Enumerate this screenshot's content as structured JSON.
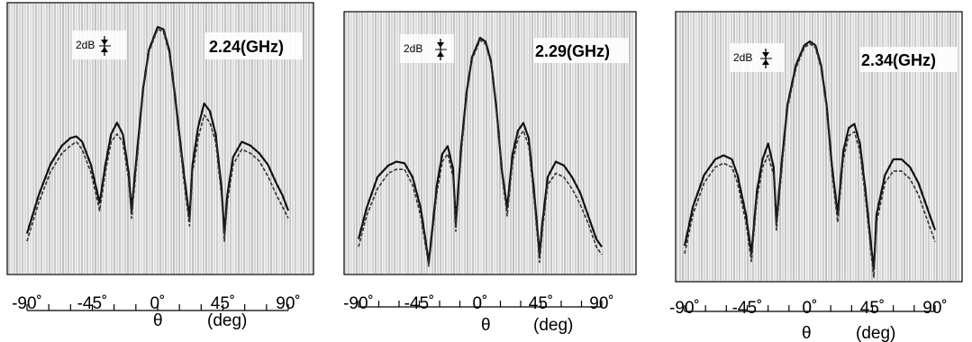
{
  "chart_data": [
    {
      "type": "line",
      "title": "2.24(GHz)",
      "scale_label": "2dB",
      "xlabel_symbol": "θ",
      "xlabel_unit": "(deg)",
      "xlim": [
        -90,
        90
      ],
      "ylim": [
        -30,
        0
      ],
      "xticks": [
        -90,
        -45,
        0,
        45,
        90
      ],
      "xtick_labels": [
        "-90˚",
        "-45˚",
        "0˚",
        "45˚",
        "90˚"
      ],
      "grid": "dense vertical hatching",
      "series": [
        {
          "x": [
            -90,
            -82,
            -74,
            -66,
            -60,
            -56,
            -52,
            -46,
            -40,
            -36,
            -32,
            -28,
            -24,
            -20,
            -18,
            -14,
            -10,
            -6,
            0,
            4,
            8,
            12,
            18,
            22,
            24,
            28,
            32,
            36,
            40,
            44,
            46,
            48,
            52,
            58,
            64,
            70,
            76,
            82,
            86,
            90
          ],
          "y": [
            -27,
            -22,
            -18,
            -15.5,
            -14.5,
            -14.3,
            -15,
            -18,
            -23,
            -18,
            -14,
            -12.5,
            -14,
            -19,
            -24,
            -16,
            -8,
            -3,
            0,
            -0.3,
            -3,
            -9,
            -19,
            -25,
            -18,
            -13,
            -10,
            -11,
            -14,
            -21,
            -27,
            -22,
            -17,
            -15,
            -15.5,
            -16.5,
            -18,
            -20.5,
            -22,
            -24
          ]
        },
        {
          "x": [
            -90,
            -82,
            -74,
            -66,
            -60,
            -56,
            -52,
            -46,
            -40,
            -36,
            -32,
            -28,
            -24,
            -20,
            -18,
            -14,
            -10,
            -6,
            0,
            4,
            8,
            12,
            18,
            22,
            24,
            28,
            32,
            36,
            40,
            44,
            46,
            48,
            52,
            58,
            64,
            70,
            76,
            82,
            86,
            90
          ],
          "y": [
            -28,
            -23,
            -19,
            -16.5,
            -15.5,
            -15,
            -16,
            -19,
            -24,
            -19,
            -15,
            -14,
            -15,
            -20,
            -25,
            -17,
            -8.5,
            -3.3,
            -0.3,
            -0.6,
            -3.4,
            -9.5,
            -20,
            -26,
            -19,
            -14.5,
            -11.5,
            -12.5,
            -15,
            -22,
            -28,
            -23,
            -18,
            -16,
            -16.5,
            -17.5,
            -19.5,
            -22,
            -23.5,
            -25
          ]
        }
      ]
    },
    {
      "type": "line",
      "title": "2.29(GHz)",
      "scale_label": "2dB",
      "xlabel_symbol": "θ",
      "xlabel_unit": "(deg)",
      "xlim": [
        -90,
        90
      ],
      "ylim": [
        -30,
        0
      ],
      "xticks": [
        -90,
        -45,
        0,
        45,
        90
      ],
      "xtick_labels": [
        "-90˚",
        "-45˚",
        "0˚",
        "45˚",
        "90˚"
      ],
      "grid": "dense vertical hatching",
      "series": [
        {
          "x": [
            -90,
            -84,
            -76,
            -68,
            -62,
            -56,
            -50,
            -44,
            -38,
            -32,
            -28,
            -24,
            -20,
            -18,
            -14,
            -10,
            -6,
            0,
            4,
            8,
            12,
            16,
            20,
            24,
            28,
            32,
            36,
            40,
            44,
            46,
            50,
            56,
            62,
            68,
            74,
            80,
            86,
            90
          ],
          "y": [
            -26,
            -22,
            -18,
            -16.5,
            -16,
            -16.2,
            -18,
            -22,
            -29,
            -19,
            -15,
            -14,
            -17,
            -24,
            -14,
            -7,
            -2.5,
            0,
            -0.5,
            -3,
            -9,
            -17,
            -22,
            -15,
            -12,
            -11,
            -13,
            -20,
            -28,
            -24,
            -18,
            -16,
            -16.5,
            -18,
            -20,
            -23,
            -26,
            -27
          ]
        },
        {
          "x": [
            -90,
            -84,
            -76,
            -68,
            -62,
            -56,
            -50,
            -44,
            -38,
            -32,
            -28,
            -24,
            -20,
            -18,
            -14,
            -10,
            -6,
            0,
            4,
            8,
            12,
            16,
            20,
            24,
            28,
            32,
            36,
            40,
            44,
            46,
            50,
            56,
            62,
            68,
            74,
            80,
            86,
            90
          ],
          "y": [
            -27,
            -23,
            -19.5,
            -17.5,
            -17,
            -17,
            -19,
            -23,
            -29.5,
            -20,
            -16,
            -15,
            -18,
            -25,
            -15,
            -7.5,
            -2.8,
            -0.3,
            -0.8,
            -3.3,
            -9.5,
            -17.5,
            -23,
            -16,
            -13,
            -12,
            -14,
            -21,
            -29,
            -25,
            -19,
            -17.5,
            -18,
            -19.5,
            -21.5,
            -24,
            -27,
            -28
          ]
        }
      ]
    },
    {
      "type": "line",
      "title": "2.34(GHz)",
      "scale_label": "2dB",
      "xlabel_symbol": "θ",
      "xlabel_unit": "(deg)",
      "xlim": [
        -90,
        90
      ],
      "ylim": [
        -30,
        0
      ],
      "xticks": [
        -90,
        -45,
        0,
        45,
        90
      ],
      "xtick_labels": [
        "-90˚",
        "-45˚",
        "0˚",
        "45˚",
        "90˚"
      ],
      "grid": "dense vertical hatching",
      "series": [
        {
          "x": [
            -90,
            -84,
            -76,
            -68,
            -62,
            -56,
            -52,
            -46,
            -42,
            -38,
            -34,
            -30,
            -26,
            -24,
            -20,
            -16,
            -10,
            -4,
            0,
            4,
            8,
            12,
            16,
            20,
            24,
            28,
            32,
            36,
            40,
            44,
            46,
            48,
            54,
            60,
            66,
            72,
            78,
            84,
            88,
            90
          ],
          "y": [
            -26,
            -21,
            -17,
            -15,
            -14.5,
            -15,
            -17,
            -22,
            -27,
            -19,
            -15,
            -13,
            -16,
            -23,
            -15,
            -8,
            -3,
            -0.5,
            0,
            -0.5,
            -3,
            -8,
            -16,
            -22,
            -14,
            -11,
            -10.5,
            -13,
            -19,
            -26,
            -29,
            -22,
            -17,
            -15,
            -15,
            -16,
            -18,
            -21,
            -23,
            -24
          ]
        },
        {
          "x": [
            -90,
            -84,
            -76,
            -68,
            -62,
            -56,
            -52,
            -46,
            -42,
            -38,
            -34,
            -30,
            -26,
            -24,
            -20,
            -16,
            -10,
            -4,
            0,
            4,
            8,
            12,
            16,
            20,
            24,
            28,
            32,
            36,
            40,
            44,
            46,
            48,
            54,
            60,
            66,
            72,
            78,
            84,
            88,
            90
          ],
          "y": [
            -27,
            -22,
            -18,
            -16,
            -15.5,
            -16,
            -18,
            -23,
            -28,
            -20,
            -16,
            -14.5,
            -17,
            -24,
            -16,
            -8.5,
            -3.4,
            -0.8,
            -0.3,
            -0.8,
            -3.4,
            -8.5,
            -17,
            -23,
            -15,
            -12,
            -11.5,
            -14,
            -20,
            -27,
            -30,
            -23,
            -18,
            -16.5,
            -16.5,
            -17.5,
            -19.5,
            -22.5,
            -24.5,
            -25.5
          ]
        }
      ]
    }
  ]
}
